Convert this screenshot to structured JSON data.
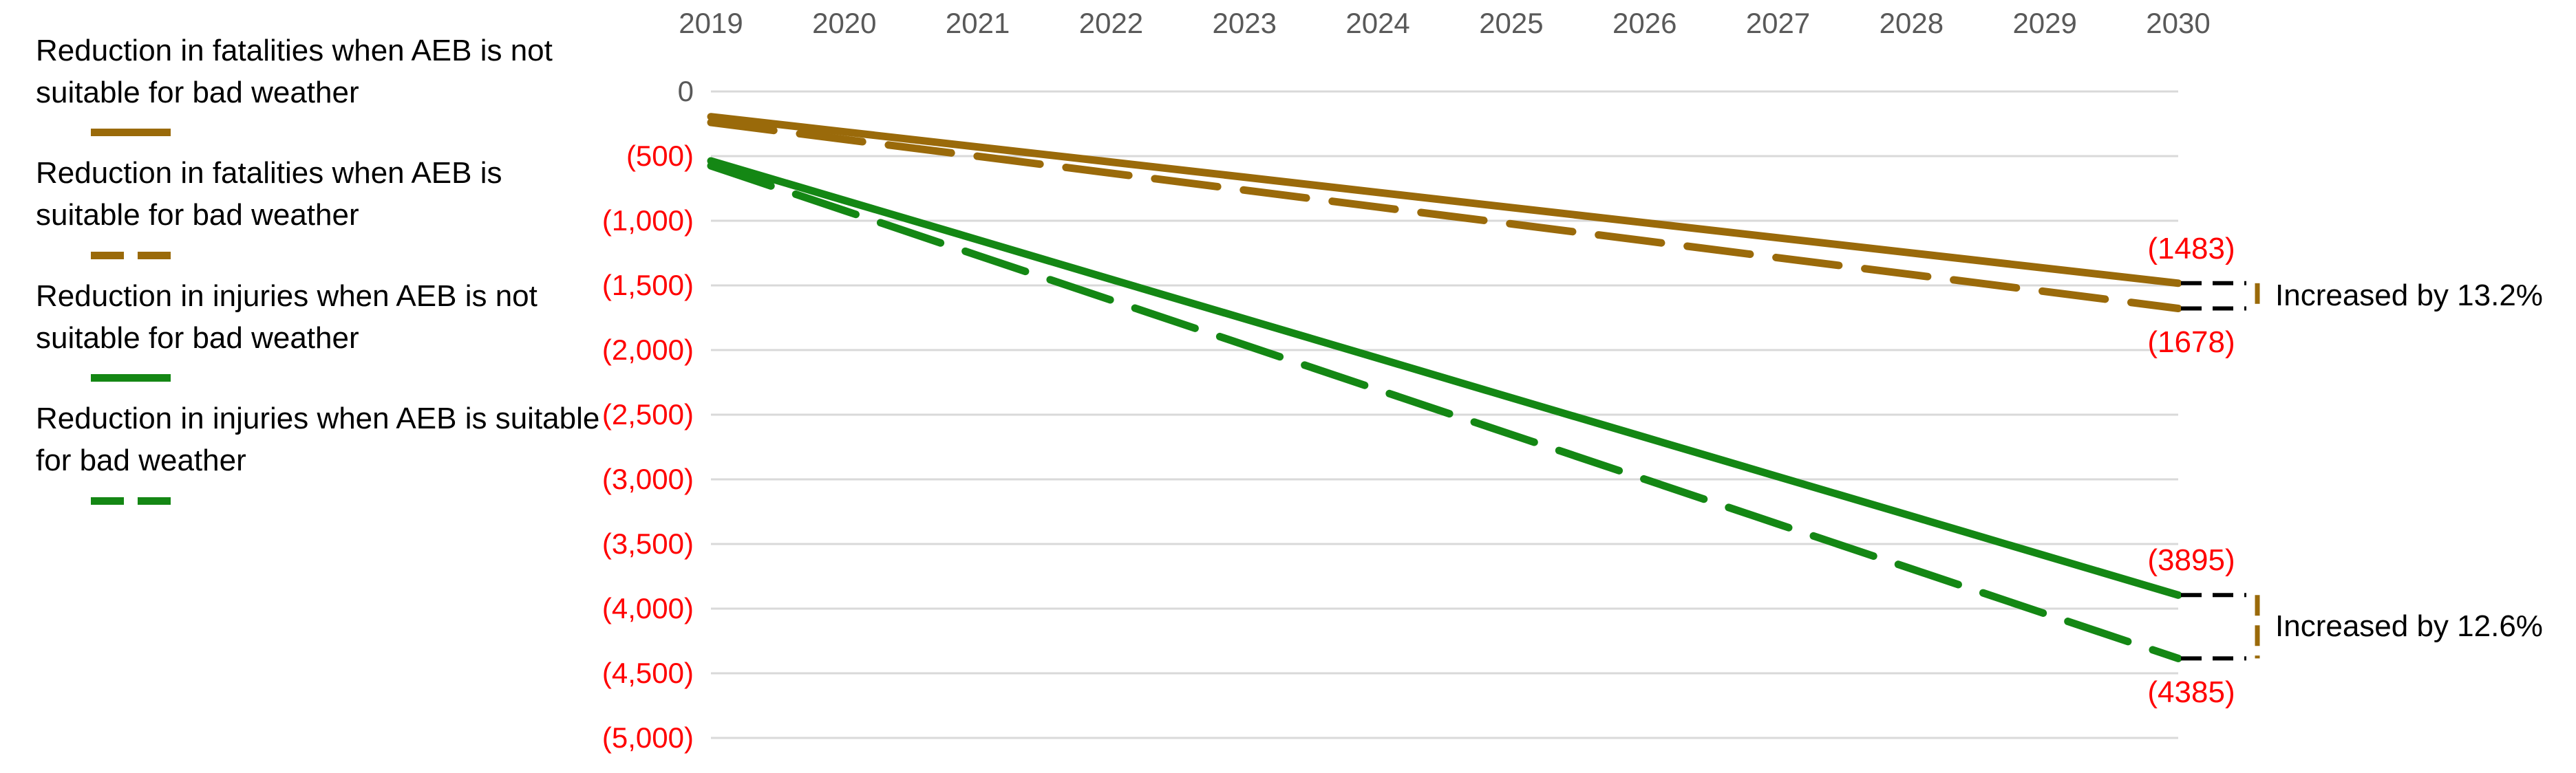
{
  "chart_data": {
    "type": "line",
    "title": "",
    "xlabel": "",
    "ylabel": "",
    "x": [
      "2019",
      "2020",
      "2021",
      "2022",
      "2023",
      "2024",
      "2025",
      "2026",
      "2027",
      "2028",
      "2029",
      "2030"
    ],
    "series": [
      {
        "id": "fatalities-aeb-not-suitable",
        "name": "Reduction in fatalities when AEB is not suitable for bad weather",
        "color": "#9A6A0A",
        "line_style": "solid",
        "values": [
          -195,
          -312,
          -429,
          -546,
          -663,
          -781,
          -898,
          -1015,
          -1132,
          -1249,
          -1366,
          -1483
        ],
        "end_label": "(1483)",
        "end_label_position": "above"
      },
      {
        "id": "fatalities-aeb-suitable",
        "name": "Reduction in fatalities when AEB is suitable for bad weather",
        "color": "#9A6A0A",
        "line_style": "dashed",
        "values": [
          -240,
          -371,
          -501,
          -632,
          -763,
          -894,
          -1024,
          -1155,
          -1286,
          -1416,
          -1547,
          -1678
        ],
        "end_label": "(1678)",
        "end_label_position": "below"
      },
      {
        "id": "injuries-aeb-not-suitable",
        "name": "Reduction in injuries when AEB is not suitable for bad weather",
        "color": "#148714",
        "line_style": "solid",
        "values": [
          -537,
          -842,
          -1147,
          -1453,
          -1758,
          -2063,
          -2369,
          -2674,
          -2979,
          -3284,
          -3590,
          -3895
        ],
        "end_label": "(3895)",
        "end_label_position": "above"
      },
      {
        "id": "injuries-aeb-suitable",
        "name": "Reduction in injuries when AEB is suitable for bad weather",
        "color": "#148714",
        "line_style": "dashed",
        "values": [
          -575,
          -921,
          -1268,
          -1614,
          -1960,
          -2307,
          -2653,
          -2999,
          -3346,
          -3692,
          -4039,
          -4385
        ],
        "end_label": "(4385)",
        "end_label_position": "below"
      }
    ],
    "y_axis": {
      "range": [
        -5000,
        0
      ],
      "tick_step": 500,
      "ticks": [
        {
          "label": "0",
          "color": "#595959"
        },
        {
          "label": "(500)",
          "color": "#FF0000"
        },
        {
          "label": "(1,000)",
          "color": "#FF0000"
        },
        {
          "label": "(1,500)",
          "color": "#FF0000"
        },
        {
          "label": "(2,000)",
          "color": "#FF0000"
        },
        {
          "label": "(2,500)",
          "color": "#FF0000"
        },
        {
          "label": "(3,000)",
          "color": "#FF0000"
        },
        {
          "label": "(3,500)",
          "color": "#FF0000"
        },
        {
          "label": "(4,000)",
          "color": "#FF0000"
        },
        {
          "label": "(4,500)",
          "color": "#FF0000"
        },
        {
          "label": "(5,000)",
          "color": "#FF0000"
        }
      ]
    },
    "x_axis": {
      "label_color": "#595959",
      "position": "top"
    },
    "grid": true,
    "legend_position": "left",
    "annotations": [
      {
        "text": "Increased by 13.2%",
        "between_series": [
          0,
          1
        ]
      },
      {
        "text": "Increased by 12.6%",
        "between_series": [
          2,
          3
        ]
      }
    ],
    "colors": {
      "gridline": "#D9D9D9",
      "data_label": "#FF0000",
      "bracket_dash": "#000000",
      "bracket_tie": "#9A6A0A",
      "annotation_text": "#000000"
    }
  }
}
